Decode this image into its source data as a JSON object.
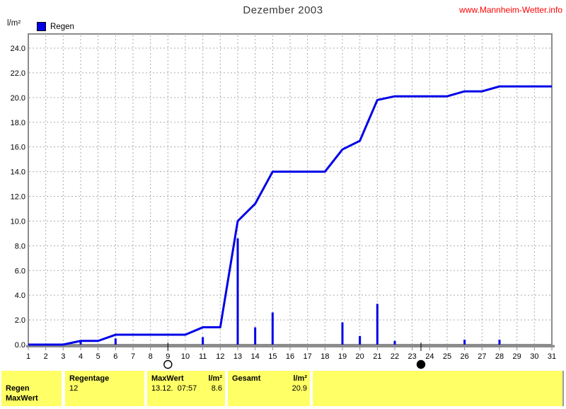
{
  "header": {
    "title": "Dezember 2003",
    "website": "www.Mannheim-Wetter.info"
  },
  "axis_unit": "l/m²",
  "legend": {
    "label": "Regen"
  },
  "colors": {
    "series_blue": "#0000e8",
    "frame_gray": "#8c8c8c",
    "grid_gray": "#ababab",
    "table_yellow": "#ffff66",
    "link_red": "#ff0000"
  },
  "chart_data": {
    "type": "line+bar",
    "title": "Dezember 2003",
    "ylabel": "l/m²",
    "x": [
      1,
      2,
      3,
      4,
      5,
      6,
      7,
      8,
      9,
      10,
      11,
      12,
      13,
      14,
      15,
      16,
      17,
      18,
      19,
      20,
      21,
      22,
      23,
      24,
      25,
      26,
      27,
      28,
      29,
      30,
      31
    ],
    "xlim": [
      1,
      31
    ],
    "ylim": [
      0,
      25.2
    ],
    "ytick_step": 2,
    "ytick_max": 24,
    "grid": "dashed",
    "legend_position": "top-left",
    "series": [
      {
        "name": "Regen Tagessumme",
        "type": "bar",
        "color": "#0000e8",
        "values": [
          0,
          0,
          0,
          0.3,
          0,
          0.5,
          0,
          0,
          0,
          0,
          0.6,
          0,
          8.6,
          1.4,
          2.6,
          0,
          0,
          0,
          1.8,
          0.7,
          3.3,
          0.3,
          0,
          0,
          0,
          0.4,
          0,
          0.4,
          0,
          0,
          0
        ]
      },
      {
        "name": "Regen Summe kumuliert",
        "type": "line",
        "color": "#0000e8",
        "values": [
          0,
          0,
          0,
          0.3,
          0.3,
          0.8,
          0.8,
          0.8,
          0.8,
          0.8,
          1.4,
          1.4,
          10.0,
          11.4,
          14.0,
          14.0,
          14.0,
          14.0,
          15.8,
          16.5,
          19.8,
          20.1,
          20.1,
          20.1,
          20.1,
          20.5,
          20.5,
          20.9,
          20.9,
          20.9,
          20.9
        ]
      }
    ],
    "moon_markers": [
      {
        "day": 9,
        "symbol": "open-circle"
      },
      {
        "day": 23.5,
        "symbol": "filled-circle"
      }
    ]
  },
  "table": {
    "row_label_1": "Regen",
    "row_label_2": "MaxWert",
    "regentage_header": "Regentage",
    "regentage_value": "12",
    "maxwert_header": "MaxWert",
    "maxwert_unit": "l/m²",
    "maxwert_value": "13.12.  07:57",
    "maxwert_amount": "8.6",
    "gesamt_header": "Gesamt",
    "gesamt_unit": "l/m²",
    "gesamt_value": "20.9"
  }
}
